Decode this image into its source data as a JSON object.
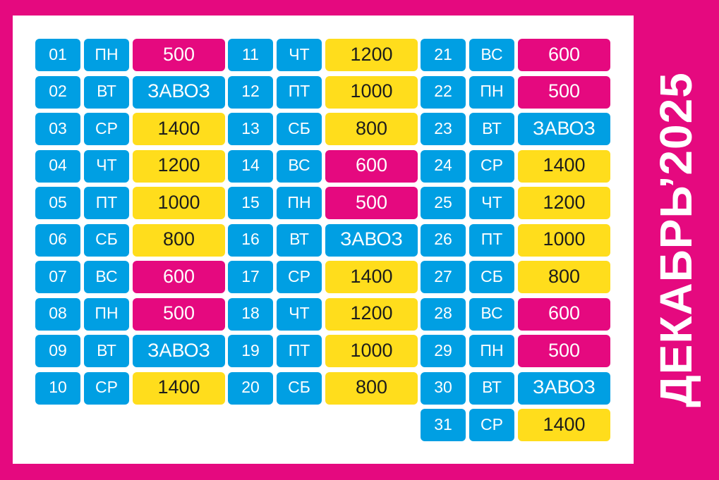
{
  "title": "ДЕКАБРЬ’2025",
  "colors": {
    "frame": "#E5097F",
    "pink": "#E5097F",
    "yellow": "#FFDD1C",
    "blue": "#009FE3",
    "panel": "#FFFFFF"
  },
  "columns": [
    [
      {
        "num": "01",
        "day": "ПН",
        "value": "500",
        "color": "pink"
      },
      {
        "num": "02",
        "day": "ВТ",
        "value": "ЗАВОЗ",
        "color": "blue"
      },
      {
        "num": "03",
        "day": "СР",
        "value": "1400",
        "color": "yellow"
      },
      {
        "num": "04",
        "day": "ЧТ",
        "value": "1200",
        "color": "yellow"
      },
      {
        "num": "05",
        "day": "ПТ",
        "value": "1000",
        "color": "yellow"
      },
      {
        "num": "06",
        "day": "СБ",
        "value": "800",
        "color": "yellow"
      },
      {
        "num": "07",
        "day": "ВС",
        "value": "600",
        "color": "pink"
      },
      {
        "num": "08",
        "day": "ПН",
        "value": "500",
        "color": "pink"
      },
      {
        "num": "09",
        "day": "ВТ",
        "value": "ЗАВОЗ",
        "color": "blue"
      },
      {
        "num": "10",
        "day": "СР",
        "value": "1400",
        "color": "yellow"
      }
    ],
    [
      {
        "num": "11",
        "day": "ЧТ",
        "value": "1200",
        "color": "yellow"
      },
      {
        "num": "12",
        "day": "ПТ",
        "value": "1000",
        "color": "yellow"
      },
      {
        "num": "13",
        "day": "СБ",
        "value": "800",
        "color": "yellow"
      },
      {
        "num": "14",
        "day": "ВС",
        "value": "600",
        "color": "pink"
      },
      {
        "num": "15",
        "day": "ПН",
        "value": "500",
        "color": "pink"
      },
      {
        "num": "16",
        "day": "ВТ",
        "value": "ЗАВОЗ",
        "color": "blue"
      },
      {
        "num": "17",
        "day": "СР",
        "value": "1400",
        "color": "yellow"
      },
      {
        "num": "18",
        "day": "ЧТ",
        "value": "1200",
        "color": "yellow"
      },
      {
        "num": "19",
        "day": "ПТ",
        "value": "1000",
        "color": "yellow"
      },
      {
        "num": "20",
        "day": "СБ",
        "value": "800",
        "color": "yellow"
      }
    ],
    [
      {
        "num": "21",
        "day": "ВС",
        "value": "600",
        "color": "pink"
      },
      {
        "num": "22",
        "day": "ПН",
        "value": "500",
        "color": "pink"
      },
      {
        "num": "23",
        "day": "ВТ",
        "value": "ЗАВОЗ",
        "color": "blue"
      },
      {
        "num": "24",
        "day": "СР",
        "value": "1400",
        "color": "yellow"
      },
      {
        "num": "25",
        "day": "ЧТ",
        "value": "1200",
        "color": "yellow"
      },
      {
        "num": "26",
        "day": "ПТ",
        "value": "1000",
        "color": "yellow"
      },
      {
        "num": "27",
        "day": "СБ",
        "value": "800",
        "color": "yellow"
      },
      {
        "num": "28",
        "day": "ВС",
        "value": "600",
        "color": "pink"
      },
      {
        "num": "29",
        "day": "ПН",
        "value": "500",
        "color": "pink"
      },
      {
        "num": "30",
        "day": "ВТ",
        "value": "ЗАВОЗ",
        "color": "blue"
      },
      {
        "num": "31",
        "day": "СР",
        "value": "1400",
        "color": "yellow"
      }
    ]
  ]
}
